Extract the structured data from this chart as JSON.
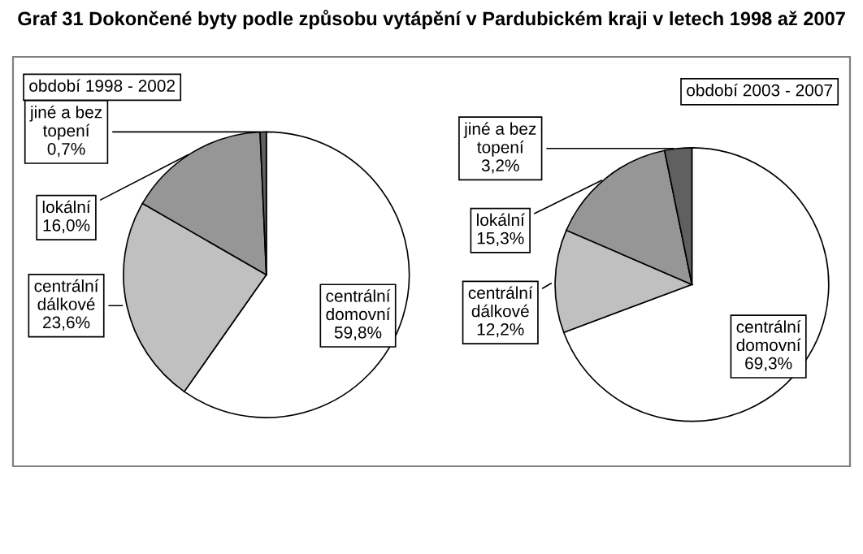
{
  "chart_data": [
    {
      "type": "pie",
      "title": "Graf 31 Dokončené byty podle způsobu vytápění v Pardubickém kraji v letech 1998 až 2007",
      "subtitle": "období 1998 - 2002",
      "categories": [
        "centrální\ndomovní",
        "centrální\ndálkové",
        "lokální",
        "jiné a bez\ntopení"
      ],
      "values": [
        59.8,
        23.6,
        16.0,
        0.7
      ],
      "colors": [
        "#ffffff",
        "#c0c0c0",
        "#969696",
        "#606060"
      ],
      "value_labels": [
        "59,8%",
        "23,6%",
        "16,0%",
        "0,7%"
      ]
    },
    {
      "type": "pie",
      "subtitle": "období 2003 - 2007",
      "categories": [
        "centrální\ndomovní",
        "centrální\ndálkové",
        "lokální",
        "jiné a bez\ntopení"
      ],
      "values": [
        69.3,
        12.2,
        15.3,
        3.2
      ],
      "colors": [
        "#ffffff",
        "#c0c0c0",
        "#969696",
        "#606060"
      ],
      "value_labels": [
        "69,3%",
        "12,2%",
        "15,3%",
        "3,2%"
      ]
    }
  ]
}
